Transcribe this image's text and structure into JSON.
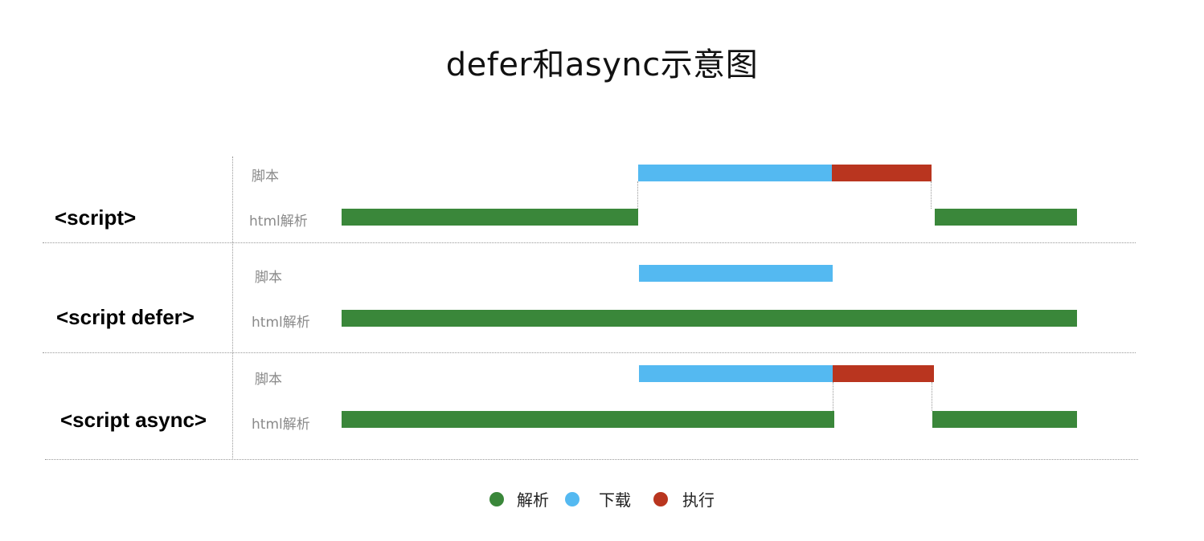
{
  "title": "defer和async示意图",
  "colors": {
    "parse": "#3a873a",
    "download": "#54b9f1",
    "exec": "#b9351f"
  },
  "rows": [
    {
      "title": "<script>",
      "script_label": "脚本",
      "html_label": "html解析"
    },
    {
      "title": "<script defer>",
      "script_label": "脚本",
      "html_label": "html解析"
    },
    {
      "title": "<script async>",
      "script_label": "脚本",
      "html_label": "html解析"
    }
  ],
  "legend": [
    {
      "label": "解析",
      "color": "#3a873a"
    },
    {
      "label": "下载",
      "color": "#54b9f1"
    },
    {
      "label": "执行",
      "color": "#b9351f"
    }
  ]
}
